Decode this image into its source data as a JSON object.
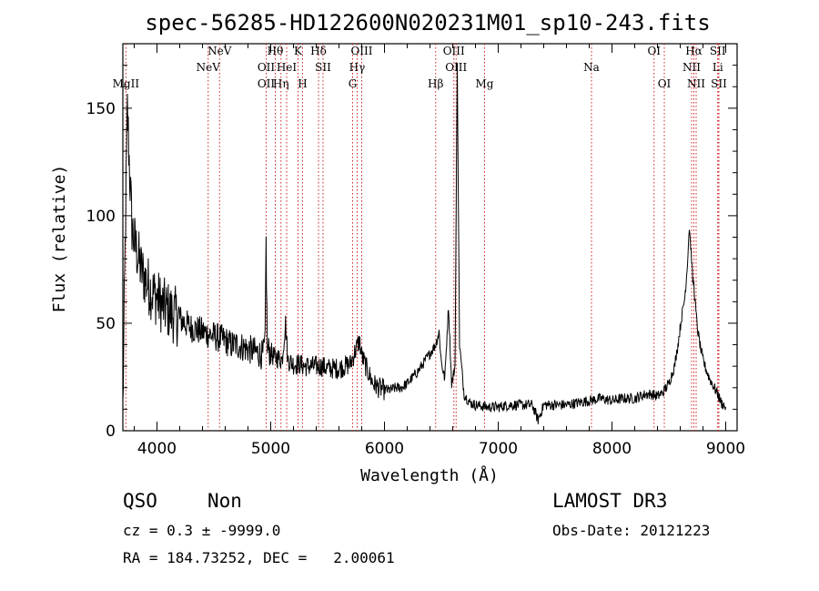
{
  "chart_data": {
    "type": "line",
    "title": "spec-56285-HD122600N020231M01_sp10-243.fits",
    "xlabel": "Wavelength (Å)",
    "ylabel": "Flux (relative)",
    "xlim": [
      3700,
      9100
    ],
    "ylim": [
      0,
      180
    ],
    "xticks": [
      4000,
      5000,
      6000,
      7000,
      8000,
      9000
    ],
    "yticks": [
      0,
      50,
      100,
      150
    ],
    "series": [
      {
        "name": "spectrum",
        "x": [
          3700,
          3720,
          3740,
          3760,
          3780,
          3800,
          3830,
          3860,
          3900,
          3950,
          4000,
          4050,
          4100,
          4150,
          4200,
          4250,
          4300,
          4350,
          4400,
          4450,
          4500,
          4550,
          4600,
          4650,
          4700,
          4750,
          4800,
          4850,
          4900,
          4930,
          4950,
          4959,
          4970,
          5007,
          5030,
          5060,
          5100,
          5130,
          5150,
          5200,
          5250,
          5300,
          5350,
          5400,
          5450,
          5500,
          5550,
          5600,
          5650,
          5700,
          5750,
          5780,
          5800,
          5850,
          5900,
          5950,
          6000,
          6050,
          6100,
          6150,
          6200,
          6250,
          6300,
          6350,
          6400,
          6450,
          6480,
          6500,
          6530,
          6563,
          6590,
          6600,
          6620,
          6640,
          6660,
          6700,
          6750,
          6800,
          6900,
          7000,
          7100,
          7200,
          7300,
          7350,
          7400,
          7500,
          7600,
          7700,
          7800,
          7900,
          8000,
          8100,
          8200,
          8300,
          8350,
          8400,
          8450,
          8500,
          8550,
          8580,
          8610,
          8640,
          8660,
          8680,
          8700,
          8710,
          8720,
          8730,
          8750,
          8780,
          8800,
          8830,
          8860,
          8900,
          8930,
          8960,
          9000
        ],
        "y": [
          10,
          85,
          150,
          120,
          95,
          88,
          82,
          75,
          70,
          65,
          62,
          58,
          56,
          54,
          52,
          50,
          48,
          47,
          46,
          45,
          44,
          43,
          42,
          40,
          40,
          39,
          38,
          37,
          36,
          35,
          40,
          88,
          38,
          36,
          34,
          34,
          33,
          50,
          33,
          31,
          31,
          30,
          30,
          30,
          30,
          29,
          29,
          29,
          30,
          31,
          38,
          42,
          35,
          28,
          22,
          20,
          19,
          19,
          20,
          20,
          22,
          25,
          28,
          32,
          36,
          40,
          46,
          32,
          24,
          58,
          22,
          24,
          30,
          170,
          40,
          17,
          13,
          12,
          11,
          11,
          12,
          12,
          12,
          5,
          12,
          12,
          12,
          13,
          14,
          15,
          14,
          15,
          15,
          17,
          17,
          16,
          18,
          22,
          30,
          40,
          52,
          62,
          75,
          95,
          80,
          70,
          68,
          60,
          48,
          38,
          33,
          28,
          24,
          20,
          17,
          13,
          11
        ],
        "color": "#000000"
      }
    ],
    "lines": [
      {
        "label": "MgII",
        "wave": 3727,
        "row": 3
      },
      {
        "label": "NeV",
        "wave": 4450,
        "row": 2
      },
      {
        "label": "NeV",
        "wave": 4550,
        "row": 1
      },
      {
        "label": "OII",
        "wave": 4960,
        "row": 2
      },
      {
        "label": "OII",
        "wave": 4960,
        "row": 3
      },
      {
        "label": "Hθ",
        "wave": 5040,
        "row": 1
      },
      {
        "label": "Hη",
        "wave": 5090,
        "row": 3
      },
      {
        "label": "HeI",
        "wave": 5140,
        "row": 2
      },
      {
        "label": "K",
        "wave": 5240,
        "row": 1
      },
      {
        "label": "H",
        "wave": 5280,
        "row": 3
      },
      {
        "label": "Hδ",
        "wave": 5420,
        "row": 1
      },
      {
        "label": "SII",
        "wave": 5460,
        "row": 2
      },
      {
        "label": "OIII",
        "wave": 5800,
        "row": 1
      },
      {
        "label": "Hγ",
        "wave": 5760,
        "row": 2
      },
      {
        "label": "G",
        "wave": 5720,
        "row": 3
      },
      {
        "label": "Hβ",
        "wave": 6450,
        "row": 3
      },
      {
        "label": "OIII",
        "wave": 6610,
        "row": 1
      },
      {
        "label": "OIII",
        "wave": 6630,
        "row": 2
      },
      {
        "label": "Mg",
        "wave": 6880,
        "row": 3
      },
      {
        "label": "Na",
        "wave": 7820,
        "row": 2
      },
      {
        "label": "OI",
        "wave": 8370,
        "row": 1
      },
      {
        "label": "OI",
        "wave": 8460,
        "row": 3
      },
      {
        "label": "Hα",
        "wave": 8720,
        "row": 1
      },
      {
        "label": "NII",
        "wave": 8700,
        "row": 2
      },
      {
        "label": "NII",
        "wave": 8740,
        "row": 3
      },
      {
        "label": "SII",
        "wave": 8930,
        "row": 1
      },
      {
        "label": "Li",
        "wave": 8930,
        "row": 2
      },
      {
        "label": "SII",
        "wave": 8940,
        "row": 3
      }
    ]
  },
  "info": {
    "class": "QSO",
    "subclass": "Non",
    "survey": "LAMOST DR3",
    "cz": "cz = 0.3 ± -9999.0",
    "obs_date": "Obs-Date: 20121223",
    "coords": "RA = 184.73252, DEC =   2.00061"
  }
}
